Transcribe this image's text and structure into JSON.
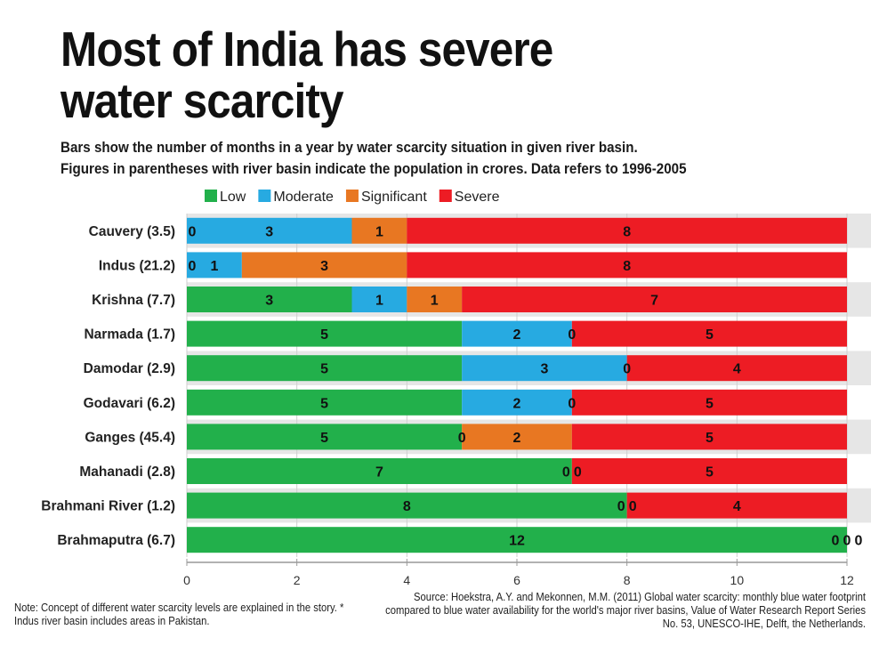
{
  "title_lines": [
    "Most of India has severe",
    "water scarcity"
  ],
  "subtitle_lines": [
    "Bars show the number of months in a year by water scarcity situation in given river basin.",
    "Figures in parentheses with river basin indicate the population in crores. Data refers to 1996-2005"
  ],
  "note": "Note: Concept of different water scarcity levels are explained in the story. * Indus river basin includes areas in Pakistan.",
  "source": "Source: Hoekstra, A.Y. and Mekonnen, M.M. (2011) Global water scarcity: monthly blue water footprint compared to blue water availability for the world's major river basins, Value of Water Research Report Series No. 53, UNESCO-IHE, Delft, the Netherlands.",
  "chart_data": {
    "type": "bar",
    "orientation": "horizontal",
    "stacked": true,
    "categories": [
      "Cauvery (3.5)",
      "Indus (21.2)",
      "Krishna (7.7)",
      "Narmada (1.7)",
      "Damodar (2.9)",
      "Godavari (6.2)",
      "Ganges (45.4)",
      "Mahanadi (2.8)",
      "Brahmani River (1.2)",
      "Brahmaputra (6.7)"
    ],
    "series": [
      {
        "name": "Low",
        "color": "#22b04b",
        "values": [
          0,
          0,
          3,
          5,
          5,
          5,
          5,
          7,
          8,
          12
        ]
      },
      {
        "name": "Moderate",
        "color": "#27aae1",
        "values": [
          3,
          1,
          1,
          2,
          3,
          2,
          0,
          0,
          0,
          0
        ]
      },
      {
        "name": "Significant",
        "color": "#e87722",
        "values": [
          1,
          3,
          1,
          0,
          0,
          0,
          2,
          0,
          0,
          0
        ]
      },
      {
        "name": "Severe",
        "color": "#ed1c24",
        "values": [
          8,
          8,
          7,
          5,
          4,
          5,
          5,
          5,
          4,
          0
        ]
      }
    ],
    "xlim": [
      0,
      12
    ],
    "xticks": [
      0,
      2,
      4,
      6,
      8,
      10,
      12
    ],
    "legend_position": "top",
    "data_labels": true,
    "grid": true,
    "row_band_color": "#e6e6e6"
  }
}
